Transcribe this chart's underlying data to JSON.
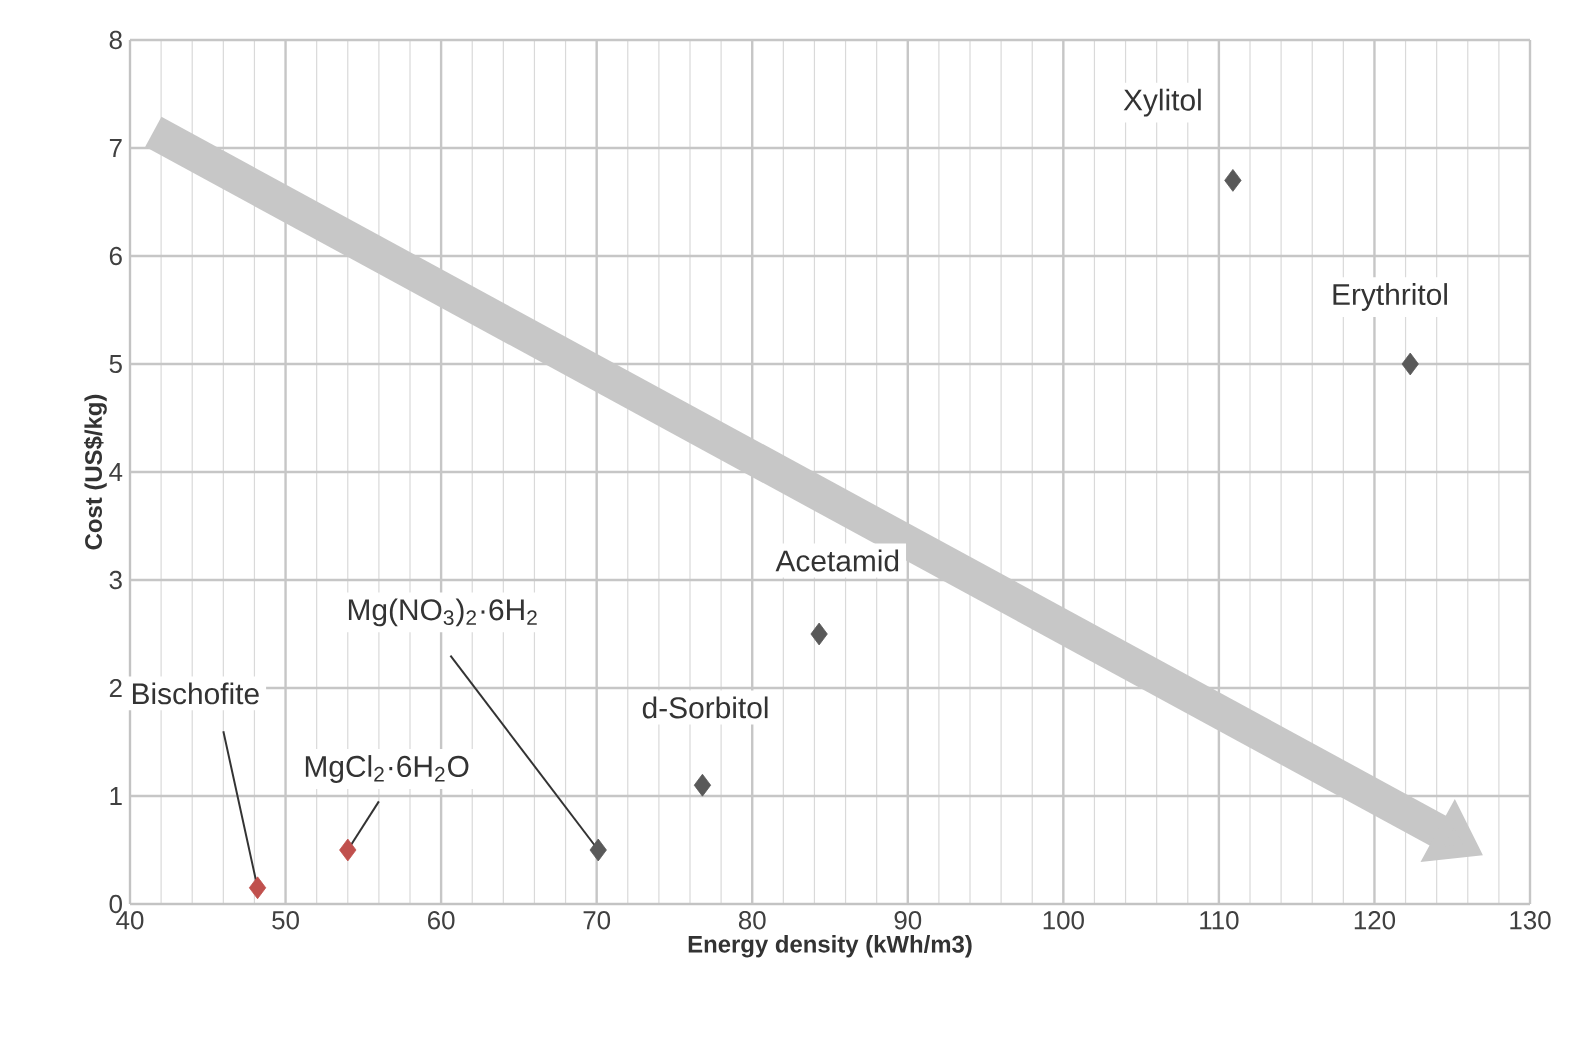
{
  "chart_data": {
    "type": "scatter",
    "xlabel": "Energy density (kWh/m3)",
    "ylabel": "Cost (US$/kg)",
    "xlim": [
      40,
      130
    ],
    "ylim": [
      0,
      8
    ],
    "xticks": [
      40,
      50,
      60,
      70,
      80,
      90,
      100,
      110,
      120,
      130
    ],
    "yticks": [
      0,
      1,
      2,
      3,
      4,
      5,
      6,
      7,
      8
    ],
    "grid": true,
    "marker": "diamond",
    "series": [
      {
        "x": [
          48.2,
          54,
          70.1,
          76.8,
          84.3,
          110.9,
          122.3
        ],
        "values": [
          0.15,
          0.5,
          0.5,
          1.1,
          2.5,
          6.7,
          5.0
        ],
        "colors": [
          "#c0504d",
          "#c0504d",
          "#595959",
          "#595959",
          "#595959",
          "#595959",
          "#595959"
        ]
      }
    ],
    "annotations": [
      {
        "text": "Bischofite",
        "x": 48.2,
        "y": 0.15
      },
      {
        "text": "MgCl$_{2}$·6H$_{2}$O",
        "x": 54,
        "y": 0.5
      },
      {
        "text": "Mg(NO$_{3}$)$_{2}$·6H$_{2}$",
        "x": 70.1,
        "y": 0.5
      },
      {
        "text": "d-Sorbitol",
        "x": 76.8,
        "y": 1.1
      },
      {
        "text": "Acetamid",
        "x": 84.3,
        "y": 2.5
      },
      {
        "text": "Xylitol",
        "x": 110.9,
        "y": 6.7
      },
      {
        "text": "Erythritol",
        "x": 122.3,
        "y": 5.0
      }
    ]
  }
}
